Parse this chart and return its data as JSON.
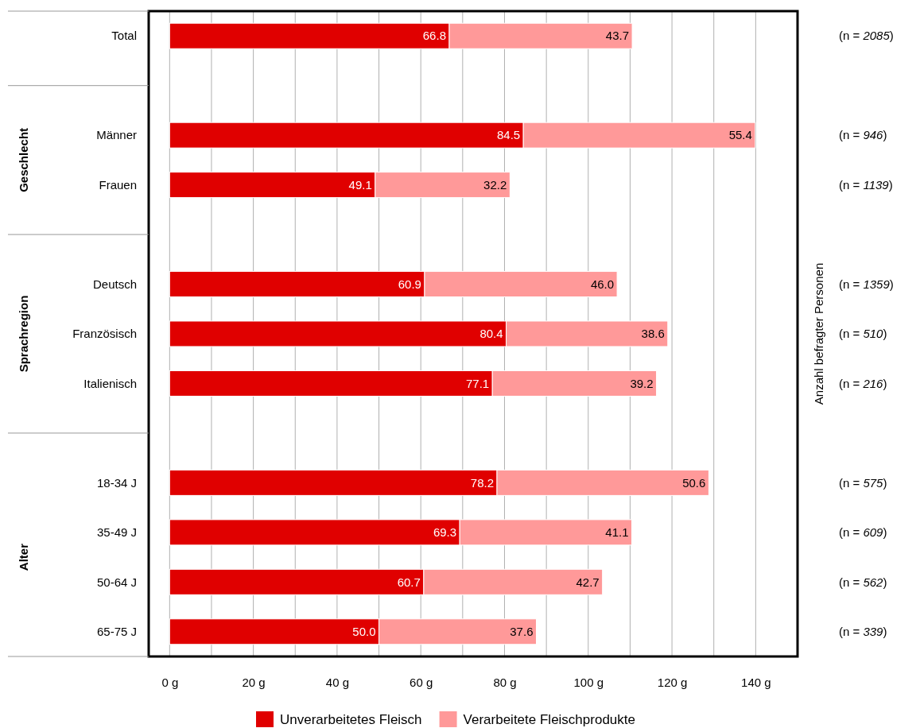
{
  "chart_data": {
    "type": "bar",
    "orientation": "horizontal",
    "stacked": true,
    "categories": [
      "Total",
      null,
      "Männer",
      "Frauen",
      null,
      "Deutsch",
      "Französisch",
      "Italienisch",
      null,
      "18-34 J",
      "35-49 J",
      "50-64 J",
      "65-75 J"
    ],
    "y2_categories": [
      "(n = 2085)",
      null,
      "(n = 946)",
      "(n = 1139)",
      null,
      "(n = 1359)",
      "(n = 510)",
      "(n = 216)",
      null,
      "(n = 575)",
      "(n = 609)",
      "(n = 562)",
      "(n = 339)"
    ],
    "y2label": "Anzahl befragter Personen",
    "series": [
      {
        "name": "Unverarbeitetes Fleisch",
        "color": "#e00000",
        "values": [
          66.8,
          null,
          84.5,
          49.1,
          null,
          60.9,
          80.4,
          77.1,
          null,
          78.2,
          69.3,
          60.7,
          50.0
        ],
        "value_labels": [
          "66.8",
          null,
          "84.5",
          "49.1",
          null,
          "60.9",
          "80.4",
          "77.1",
          null,
          "78.2",
          "69.3",
          "60.7",
          "50.0"
        ]
      },
      {
        "name": "Verarbeitete Fleischprodukte",
        "color": "#ff9999",
        "values": [
          43.7,
          null,
          55.4,
          32.2,
          null,
          46.0,
          38.6,
          39.2,
          null,
          50.6,
          41.1,
          42.7,
          37.6
        ],
        "value_labels": [
          "43.7",
          null,
          "55.4",
          "32.2",
          null,
          "46.0",
          "38.6",
          "39.2",
          null,
          "50.6",
          "41.1",
          "42.7",
          "37.6"
        ]
      }
    ],
    "xlim": [
      -5,
      150
    ],
    "xticks": [
      {
        "value": 0,
        "label": "0 g"
      },
      {
        "value": 10,
        "label": null
      },
      {
        "value": 20,
        "label": "20 g"
      },
      {
        "value": 30,
        "label": null
      },
      {
        "value": 40,
        "label": "40 g"
      },
      {
        "value": 50,
        "label": null
      },
      {
        "value": 60,
        "label": "60 g"
      },
      {
        "value": 70,
        "label": null
      },
      {
        "value": 80,
        "label": "80 g"
      },
      {
        "value": 90,
        "label": null
      },
      {
        "value": 100,
        "label": "100 g"
      },
      {
        "value": 110,
        "label": null
      },
      {
        "value": 120,
        "label": "120 g"
      },
      {
        "value": 130,
        "label": null
      },
      {
        "value": 140,
        "label": "140 g"
      }
    ],
    "grid": "x",
    "legend": "bottom",
    "annotations": [
      "Geschlecht",
      "Sprachregion",
      "Alter"
    ]
  }
}
